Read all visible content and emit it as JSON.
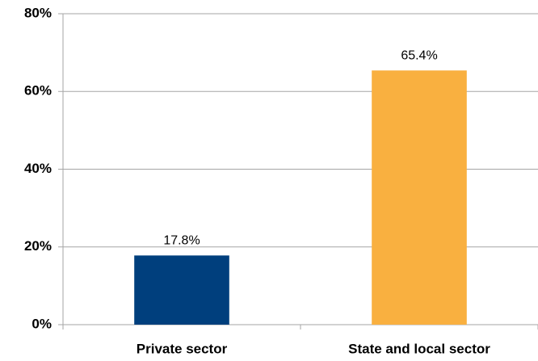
{
  "chart_data": {
    "type": "bar",
    "categories": [
      "Private sector",
      "State and local sector"
    ],
    "values": [
      17.8,
      65.4
    ],
    "value_labels": [
      "17.8%",
      "65.4%"
    ],
    "colors": [
      "#003f7d",
      "#f9b040"
    ],
    "ylim": [
      0,
      80
    ],
    "yticks": [
      {
        "value": 0,
        "label": "0%"
      },
      {
        "value": 20,
        "label": "20%"
      },
      {
        "value": 40,
        "label": "40%"
      },
      {
        "value": 60,
        "label": "60%"
      },
      {
        "value": 80,
        "label": "80%"
      }
    ],
    "grid": true
  }
}
